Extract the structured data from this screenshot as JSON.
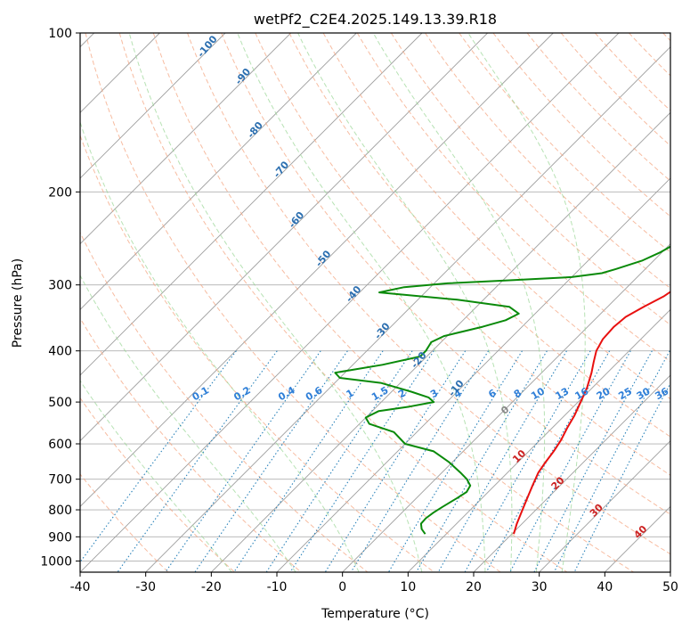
{
  "chart_data": {
    "type": "skew-t",
    "title": "wetPf2_C2E4.2025.149.13.39.R18",
    "xlabel": "Temperature (°C)",
    "ylabel": "Pressure (hPa)",
    "xlim": [
      -40,
      50
    ],
    "ylim": [
      1050,
      100
    ],
    "y_scale": "log",
    "grid": true,
    "x_ticks": [
      -40,
      -30,
      -20,
      -10,
      0,
      10,
      20,
      30,
      40,
      50
    ],
    "y_ticks": [
      100,
      200,
      300,
      400,
      500,
      600,
      700,
      800,
      900,
      1000
    ],
    "series": [
      {
        "role": "temperature",
        "color": "#e8100f",
        "points": [
          [
            889,
            20.3
          ],
          [
            850,
            19.2
          ],
          [
            810,
            18.2
          ],
          [
            760,
            16.9
          ],
          [
            720,
            15.8
          ],
          [
            680,
            14.7
          ],
          [
            650,
            14.2
          ],
          [
            620,
            13.8
          ],
          [
            590,
            13.2
          ],
          [
            560,
            12.3
          ],
          [
            530,
            11.5
          ],
          [
            500,
            10.4
          ],
          [
            470,
            9.2
          ],
          [
            440,
            7.6
          ],
          [
            420,
            6.3
          ],
          [
            400,
            5.0
          ],
          [
            380,
            4.2
          ],
          [
            360,
            4.0
          ],
          [
            345,
            4.3
          ],
          [
            330,
            5.5
          ],
          [
            315,
            7.0
          ],
          [
            300,
            7.8
          ],
          [
            290,
            7.3
          ],
          [
            275,
            6.0
          ],
          [
            260,
            5.2
          ],
          [
            245,
            4.3
          ],
          [
            230,
            2.8
          ],
          [
            215,
            1.5
          ],
          [
            200,
            0.6
          ],
          [
            185,
            -0.3
          ],
          [
            172,
            -1.2
          ],
          [
            165,
            -1.4
          ],
          [
            160,
            -1.1
          ],
          [
            155,
            -0.1
          ],
          [
            150,
            1.6
          ],
          [
            145,
            4.3
          ],
          [
            140,
            6.8
          ],
          [
            135,
            8.5
          ],
          [
            125,
            10.1
          ],
          [
            115,
            11.2
          ],
          [
            108,
            12.6
          ],
          [
            103,
            14.0
          ],
          [
            100,
            15.2
          ]
        ]
      },
      {
        "role": "dewpoint",
        "color": "#0a8a0a",
        "points": [
          [
            889,
            6.8
          ],
          [
            870,
            5.5
          ],
          [
            850,
            4.6
          ],
          [
            830,
            4.5
          ],
          [
            810,
            4.8
          ],
          [
            790,
            5.3
          ],
          [
            760,
            6.2
          ],
          [
            740,
            6.7
          ],
          [
            720,
            6.3
          ],
          [
            700,
            4.8
          ],
          [
            680,
            2.8
          ],
          [
            650,
            -0.5
          ],
          [
            620,
            -4.5
          ],
          [
            600,
            -10.0
          ],
          [
            570,
            -13.5
          ],
          [
            550,
            -18.5
          ],
          [
            535,
            -20.0
          ],
          [
            520,
            -19.0
          ],
          [
            510,
            -15.0
          ],
          [
            500,
            -12.0
          ],
          [
            490,
            -13.5
          ],
          [
            478,
            -17.0
          ],
          [
            460,
            -23.0
          ],
          [
            450,
            -30.0
          ],
          [
            440,
            -31.5
          ],
          [
            425,
            -25.5
          ],
          [
            410,
            -21.0
          ],
          [
            400,
            -21.0
          ],
          [
            385,
            -21.5
          ],
          [
            375,
            -20.5
          ],
          [
            360,
            -16.0
          ],
          [
            350,
            -13.5
          ],
          [
            340,
            -12.5
          ],
          [
            330,
            -15.0
          ],
          [
            320,
            -24.0
          ],
          [
            310,
            -37.0
          ],
          [
            303,
            -34.0
          ],
          [
            298,
            -28.0
          ],
          [
            294,
            -19.0
          ],
          [
            290,
            -10.0
          ],
          [
            285,
            -6.0
          ],
          [
            280,
            -4.5
          ],
          [
            270,
            -1.8
          ],
          [
            260,
            -0.2
          ],
          [
            250,
            0.8
          ],
          [
            240,
            0.8
          ],
          [
            225,
            -0.5
          ],
          [
            210,
            -1.7
          ],
          [
            200,
            -2.5
          ],
          [
            185,
            -2.3
          ],
          [
            172,
            -3.0
          ],
          [
            165,
            -4.9
          ],
          [
            160,
            -7.0
          ],
          [
            155,
            -9.0
          ],
          [
            150,
            -10.0
          ],
          [
            145,
            -10.5
          ],
          [
            140,
            -10.4
          ],
          [
            130,
            -8.5
          ],
          [
            120,
            -7.0
          ],
          [
            110,
            -5.0
          ],
          [
            100,
            -3.0
          ]
        ]
      }
    ],
    "dry_adiabats": {
      "color": "#f4a582",
      "labels": [
        {
          "text": "-100",
          "p": 107
        },
        {
          "text": "-90",
          "p": 122
        },
        {
          "text": "-80",
          "p": 154
        },
        {
          "text": "-70",
          "p": 183
        },
        {
          "text": "-60",
          "p": 228
        },
        {
          "text": "-50",
          "p": 270
        },
        {
          "text": "-40",
          "p": 315
        },
        {
          "text": "-30",
          "p": 370
        },
        {
          "text": "-20",
          "p": 420
        },
        {
          "text": "-10",
          "p": 475
        }
      ]
    },
    "moist_adiabats": {
      "color": "#99d594",
      "label": "0"
    },
    "mixing_ratio": {
      "color": "#2b83ba",
      "label_color": "#2f7fd8",
      "label_pressure": 488,
      "labels": [
        "0.1",
        "0.2",
        "0.4",
        "0.6",
        "1",
        "1.5",
        "2",
        "3",
        "4",
        "6",
        "8",
        "10",
        "13",
        "16",
        "20",
        "25",
        "30",
        "36"
      ]
    },
    "isotherm_labels": {
      "color": "#cc2222",
      "labels": [
        "10",
        "20",
        "30",
        "40"
      ]
    }
  }
}
